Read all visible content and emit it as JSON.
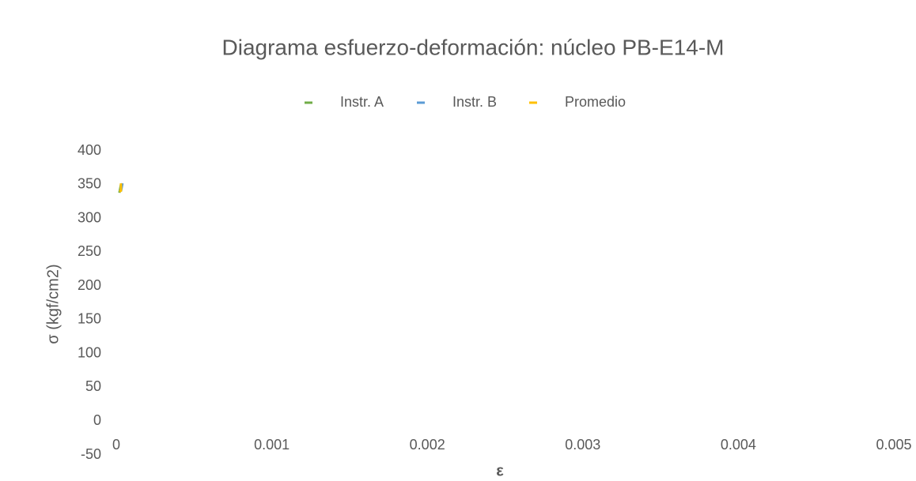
{
  "chart_data": {
    "type": "line",
    "title": "Diagrama esfuerzo-deformación: núcleo PB-E14-M",
    "x_label": "ε",
    "y_label": "σ (kgf/cm2)",
    "xlim": [
      0,
      0.005
    ],
    "xticks": [
      0,
      0.001,
      0.002,
      0.003,
      0.004,
      0.005
    ],
    "ylim": [
      -50,
      400
    ],
    "yticks": [
      -50,
      0,
      50,
      100,
      150,
      200,
      250,
      300,
      350,
      400
    ],
    "legend": "top",
    "series": [
      {
        "name": "Instr. A",
        "color": "#70ad47",
        "x": [
          2e-05,
          3e-05
        ],
        "values": [
          338,
          350
        ]
      },
      {
        "name": "Instr. B",
        "color": "#5b9bd5",
        "x": [
          3e-05,
          4e-05
        ],
        "values": [
          340,
          352
        ]
      },
      {
        "name": "Promedio",
        "color": "#ffc000",
        "x": [
          2e-05,
          3e-05,
          3e-05
        ],
        "values": [
          340,
          341,
          352
        ]
      }
    ]
  }
}
